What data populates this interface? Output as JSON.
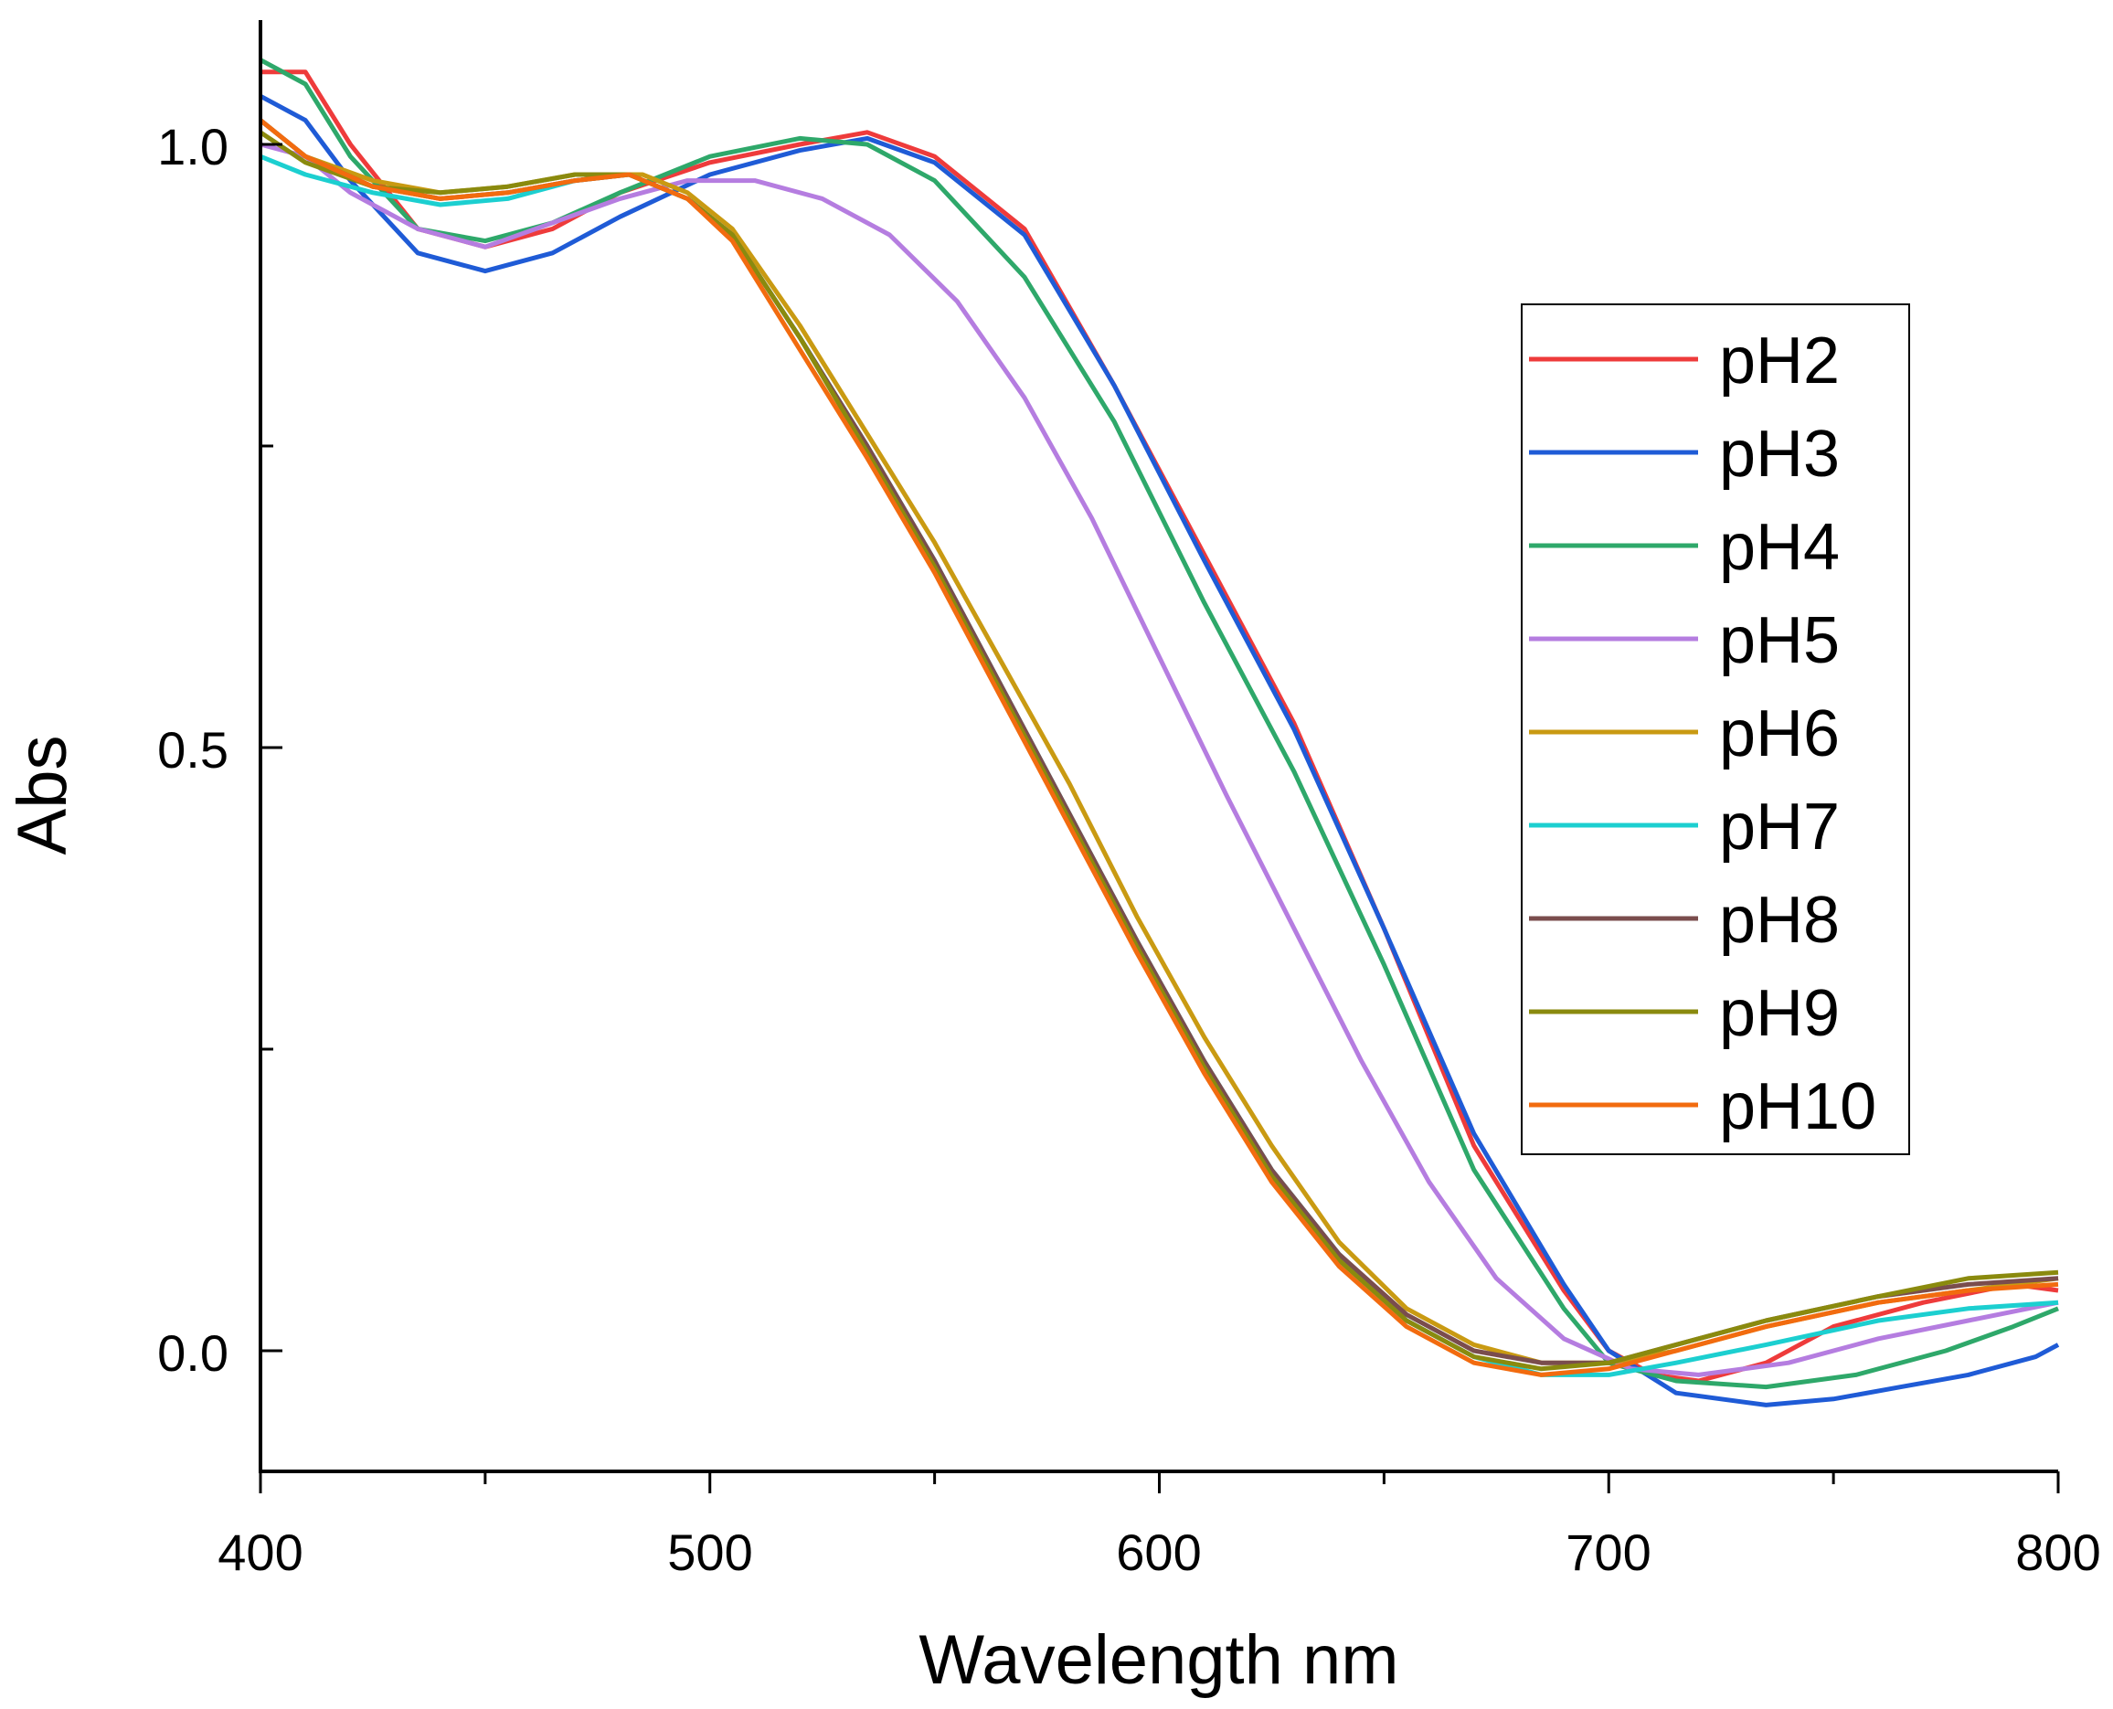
{
  "chart_data": {
    "type": "line",
    "title": "",
    "xlabel": "Wavelength nm",
    "ylabel": "Abs",
    "xlim": [
      400,
      800
    ],
    "ylim": [
      -0.1,
      1.1
    ],
    "x_ticks": [
      "400",
      "500",
      "600",
      "700",
      "800"
    ],
    "y_ticks": [
      "0.0",
      "0.5",
      "1.0"
    ],
    "grid": false,
    "legend_position": "right",
    "series": [
      {
        "name": "pH2",
        "color": "#ee3b3b",
        "points": [
          [
            400,
            1.06
          ],
          [
            410,
            1.06
          ],
          [
            420,
            1.0
          ],
          [
            435,
            0.93
          ],
          [
            450,
            0.915
          ],
          [
            465,
            0.93
          ],
          [
            480,
            0.96
          ],
          [
            500,
            0.985
          ],
          [
            520,
            1.0
          ],
          [
            535,
            1.01
          ],
          [
            550,
            0.99
          ],
          [
            570,
            0.93
          ],
          [
            590,
            0.8
          ],
          [
            610,
            0.66
          ],
          [
            630,
            0.52
          ],
          [
            650,
            0.35
          ],
          [
            670,
            0.17
          ],
          [
            690,
            0.05
          ],
          [
            700,
            0.0
          ],
          [
            710,
            -0.02
          ],
          [
            720,
            -0.025
          ],
          [
            735,
            -0.01
          ],
          [
            750,
            0.02
          ],
          [
            770,
            0.04
          ],
          [
            790,
            0.055
          ],
          [
            800,
            0.05
          ]
        ]
      },
      {
        "name": "pH3",
        "color": "#1f5bd6",
        "points": [
          [
            400,
            1.04
          ],
          [
            410,
            1.02
          ],
          [
            420,
            0.97
          ],
          [
            435,
            0.91
          ],
          [
            450,
            0.895
          ],
          [
            465,
            0.91
          ],
          [
            480,
            0.94
          ],
          [
            500,
            0.975
          ],
          [
            520,
            0.995
          ],
          [
            535,
            1.005
          ],
          [
            550,
            0.985
          ],
          [
            570,
            0.925
          ],
          [
            590,
            0.8
          ],
          [
            610,
            0.655
          ],
          [
            630,
            0.515
          ],
          [
            650,
            0.35
          ],
          [
            670,
            0.18
          ],
          [
            690,
            0.055
          ],
          [
            700,
            0.0
          ],
          [
            715,
            -0.035
          ],
          [
            735,
            -0.045
          ],
          [
            750,
            -0.04
          ],
          [
            765,
            -0.03
          ],
          [
            780,
            -0.02
          ],
          [
            795,
            -0.005
          ],
          [
            800,
            0.005
          ]
        ]
      },
      {
        "name": "pH4",
        "color": "#2ea86a",
        "points": [
          [
            400,
            1.07
          ],
          [
            410,
            1.05
          ],
          [
            420,
            0.99
          ],
          [
            435,
            0.93
          ],
          [
            450,
            0.92
          ],
          [
            465,
            0.935
          ],
          [
            480,
            0.96
          ],
          [
            500,
            0.99
          ],
          [
            520,
            1.005
          ],
          [
            535,
            1.0
          ],
          [
            550,
            0.97
          ],
          [
            570,
            0.89
          ],
          [
            590,
            0.77
          ],
          [
            610,
            0.62
          ],
          [
            630,
            0.48
          ],
          [
            650,
            0.32
          ],
          [
            670,
            0.15
          ],
          [
            690,
            0.035
          ],
          [
            700,
            -0.01
          ],
          [
            715,
            -0.025
          ],
          [
            735,
            -0.03
          ],
          [
            755,
            -0.02
          ],
          [
            775,
            0.0
          ],
          [
            790,
            0.02
          ],
          [
            800,
            0.035
          ]
        ]
      },
      {
        "name": "pH5",
        "color": "#b57de0",
        "points": [
          [
            400,
            1.0
          ],
          [
            410,
            0.99
          ],
          [
            420,
            0.96
          ],
          [
            435,
            0.93
          ],
          [
            450,
            0.915
          ],
          [
            465,
            0.935
          ],
          [
            480,
            0.955
          ],
          [
            495,
            0.97
          ],
          [
            510,
            0.97
          ],
          [
            525,
            0.955
          ],
          [
            540,
            0.925
          ],
          [
            555,
            0.87
          ],
          [
            570,
            0.79
          ],
          [
            585,
            0.69
          ],
          [
            600,
            0.575
          ],
          [
            615,
            0.46
          ],
          [
            630,
            0.35
          ],
          [
            645,
            0.24
          ],
          [
            660,
            0.14
          ],
          [
            675,
            0.06
          ],
          [
            690,
            0.01
          ],
          [
            705,
            -0.015
          ],
          [
            720,
            -0.02
          ],
          [
            740,
            -0.01
          ],
          [
            760,
            0.01
          ],
          [
            780,
            0.025
          ],
          [
            800,
            0.04
          ]
        ]
      },
      {
        "name": "pH6",
        "color": "#c99a12",
        "points": [
          [
            400,
            1.02
          ],
          [
            410,
            0.99
          ],
          [
            425,
            0.97
          ],
          [
            440,
            0.96
          ],
          [
            455,
            0.965
          ],
          [
            470,
            0.975
          ],
          [
            485,
            0.975
          ],
          [
            495,
            0.96
          ],
          [
            505,
            0.93
          ],
          [
            520,
            0.85
          ],
          [
            535,
            0.76
          ],
          [
            550,
            0.67
          ],
          [
            565,
            0.57
          ],
          [
            580,
            0.47
          ],
          [
            595,
            0.36
          ],
          [
            610,
            0.26
          ],
          [
            625,
            0.17
          ],
          [
            640,
            0.09
          ],
          [
            655,
            0.035
          ],
          [
            670,
            0.005
          ],
          [
            685,
            -0.01
          ],
          [
            700,
            -0.01
          ],
          [
            715,
            0.0
          ],
          [
            735,
            0.02
          ],
          [
            760,
            0.04
          ],
          [
            780,
            0.05
          ],
          [
            800,
            0.06
          ]
        ]
      },
      {
        "name": "pH7",
        "color": "#1ccfd0",
        "points": [
          [
            400,
            0.99
          ],
          [
            410,
            0.975
          ],
          [
            425,
            0.96
          ],
          [
            440,
            0.95
          ],
          [
            455,
            0.955
          ],
          [
            470,
            0.97
          ],
          [
            482,
            0.975
          ],
          [
            495,
            0.955
          ],
          [
            505,
            0.925
          ],
          [
            520,
            0.84
          ],
          [
            535,
            0.75
          ],
          [
            550,
            0.655
          ],
          [
            565,
            0.55
          ],
          [
            580,
            0.445
          ],
          [
            595,
            0.34
          ],
          [
            610,
            0.24
          ],
          [
            625,
            0.15
          ],
          [
            640,
            0.08
          ],
          [
            655,
            0.025
          ],
          [
            670,
            -0.005
          ],
          [
            685,
            -0.02
          ],
          [
            700,
            -0.02
          ],
          [
            715,
            -0.01
          ],
          [
            735,
            0.005
          ],
          [
            760,
            0.025
          ],
          [
            780,
            0.035
          ],
          [
            800,
            0.04
          ]
        ]
      },
      {
        "name": "pH8",
        "color": "#7a4d4d",
        "points": [
          [
            400,
            1.02
          ],
          [
            410,
            0.99
          ],
          [
            425,
            0.965
          ],
          [
            440,
            0.955
          ],
          [
            455,
            0.96
          ],
          [
            470,
            0.97
          ],
          [
            482,
            0.975
          ],
          [
            495,
            0.955
          ],
          [
            505,
            0.925
          ],
          [
            520,
            0.84
          ],
          [
            535,
            0.75
          ],
          [
            550,
            0.655
          ],
          [
            565,
            0.55
          ],
          [
            580,
            0.445
          ],
          [
            595,
            0.34
          ],
          [
            610,
            0.24
          ],
          [
            625,
            0.15
          ],
          [
            640,
            0.08
          ],
          [
            655,
            0.03
          ],
          [
            670,
            0.0
          ],
          [
            685,
            -0.01
          ],
          [
            700,
            -0.01
          ],
          [
            715,
            0.005
          ],
          [
            735,
            0.025
          ],
          [
            760,
            0.045
          ],
          [
            780,
            0.055
          ],
          [
            800,
            0.06
          ]
        ]
      },
      {
        "name": "pH9",
        "color": "#8a8a0e",
        "points": [
          [
            400,
            1.01
          ],
          [
            410,
            0.985
          ],
          [
            425,
            0.965
          ],
          [
            440,
            0.96
          ],
          [
            455,
            0.965
          ],
          [
            470,
            0.975
          ],
          [
            482,
            0.975
          ],
          [
            495,
            0.955
          ],
          [
            505,
            0.925
          ],
          [
            520,
            0.84
          ],
          [
            535,
            0.745
          ],
          [
            550,
            0.65
          ],
          [
            565,
            0.545
          ],
          [
            580,
            0.44
          ],
          [
            595,
            0.335
          ],
          [
            610,
            0.235
          ],
          [
            625,
            0.145
          ],
          [
            640,
            0.075
          ],
          [
            655,
            0.025
          ],
          [
            670,
            -0.005
          ],
          [
            685,
            -0.015
          ],
          [
            700,
            -0.01
          ],
          [
            715,
            0.005
          ],
          [
            735,
            0.025
          ],
          [
            760,
            0.045
          ],
          [
            780,
            0.06
          ],
          [
            800,
            0.065
          ]
        ]
      },
      {
        "name": "pH10",
        "color": "#f26b0f",
        "points": [
          [
            400,
            1.02
          ],
          [
            410,
            0.99
          ],
          [
            425,
            0.965
          ],
          [
            440,
            0.955
          ],
          [
            455,
            0.96
          ],
          [
            470,
            0.97
          ],
          [
            482,
            0.975
          ],
          [
            495,
            0.955
          ],
          [
            505,
            0.92
          ],
          [
            520,
            0.83
          ],
          [
            535,
            0.74
          ],
          [
            550,
            0.645
          ],
          [
            565,
            0.54
          ],
          [
            580,
            0.435
          ],
          [
            595,
            0.33
          ],
          [
            610,
            0.23
          ],
          [
            625,
            0.14
          ],
          [
            640,
            0.07
          ],
          [
            655,
            0.02
          ],
          [
            670,
            -0.01
          ],
          [
            685,
            -0.02
          ],
          [
            700,
            -0.015
          ],
          [
            715,
            0.0
          ],
          [
            735,
            0.02
          ],
          [
            760,
            0.04
          ],
          [
            780,
            0.05
          ],
          [
            800,
            0.055
          ]
        ]
      }
    ]
  }
}
